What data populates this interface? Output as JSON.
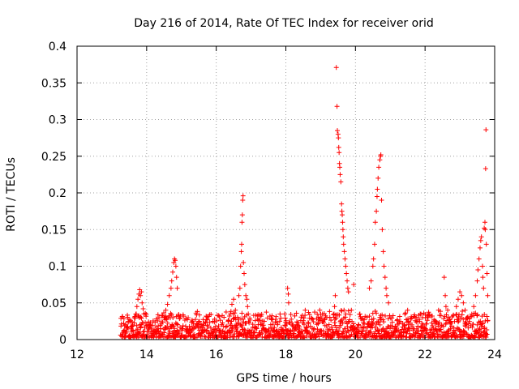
{
  "chart_data": {
    "type": "scatter",
    "title": "Day 216 of 2014, Rate Of TEC Index for receiver orid",
    "xlabel": "GPS time / hours",
    "ylabel": "ROTI / TECUs",
    "xlim": [
      12,
      24
    ],
    "ylim": [
      0,
      0.4
    ],
    "xticks": [
      12,
      14,
      16,
      18,
      20,
      22,
      24
    ],
    "xtick_labels": [
      "12",
      "14",
      "16",
      "18",
      "20",
      "22",
      "24"
    ],
    "yticks": [
      0,
      0.05,
      0.1,
      0.15,
      0.2,
      0.25,
      0.3,
      0.35,
      0.4
    ],
    "ytick_labels": [
      "0",
      "0.05",
      "0.1",
      "0.15",
      "0.2",
      "0.25",
      "0.3",
      "0.35",
      "0.4"
    ],
    "grid": true,
    "marker": "+",
    "color": "#ff0000",
    "series": [
      {
        "name": "ROTI",
        "note": "Dense band of points between ~0.003 and ~0.04 TECU from 13.25 h to 23.8 h (baseline), plus the representative elevated points listed below.",
        "baseline": {
          "x_start": 13.25,
          "x_end": 23.8,
          "y_min": 0.003,
          "y_max": 0.04
        },
        "points": [
          [
            13.6,
            0.02
          ],
          [
            13.65,
            0.03
          ],
          [
            13.7,
            0.035
          ],
          [
            13.72,
            0.045
          ],
          [
            13.75,
            0.055
          ],
          [
            13.78,
            0.062
          ],
          [
            13.8,
            0.068
          ],
          [
            13.82,
            0.06
          ],
          [
            13.85,
            0.065
          ],
          [
            13.87,
            0.05
          ],
          [
            13.9,
            0.042
          ],
          [
            13.92,
            0.035
          ],
          [
            14.5,
            0.03
          ],
          [
            14.55,
            0.04
          ],
          [
            14.6,
            0.048
          ],
          [
            14.65,
            0.06
          ],
          [
            14.7,
            0.07
          ],
          [
            14.72,
            0.08
          ],
          [
            14.75,
            0.092
          ],
          [
            14.78,
            0.105
          ],
          [
            14.8,
            0.11
          ],
          [
            14.82,
            0.108
          ],
          [
            14.84,
            0.1
          ],
          [
            14.86,
            0.085
          ],
          [
            14.88,
            0.07
          ],
          [
            16.4,
            0.035
          ],
          [
            16.45,
            0.048
          ],
          [
            16.5,
            0.055
          ],
          [
            16.55,
            0.04
          ],
          [
            16.65,
            0.06
          ],
          [
            16.68,
            0.07
          ],
          [
            16.7,
            0.1
          ],
          [
            16.72,
            0.12
          ],
          [
            16.73,
            0.13
          ],
          [
            16.74,
            0.16
          ],
          [
            16.75,
            0.17
          ],
          [
            16.76,
            0.19
          ],
          [
            16.77,
            0.196
          ],
          [
            16.78,
            0.105
          ],
          [
            16.8,
            0.09
          ],
          [
            16.82,
            0.075
          ],
          [
            16.85,
            0.06
          ],
          [
            16.88,
            0.055
          ],
          [
            16.9,
            0.045
          ],
          [
            18.05,
            0.07
          ],
          [
            18.07,
            0.062
          ],
          [
            18.08,
            0.05
          ],
          [
            19.4,
            0.045
          ],
          [
            19.42,
            0.06
          ],
          [
            19.45,
            0.371
          ],
          [
            19.47,
            0.318
          ],
          [
            19.48,
            0.285
          ],
          [
            19.5,
            0.28
          ],
          [
            19.51,
            0.275
          ],
          [
            19.52,
            0.262
          ],
          [
            19.53,
            0.255
          ],
          [
            19.54,
            0.24
          ],
          [
            19.55,
            0.235
          ],
          [
            19.56,
            0.225
          ],
          [
            19.58,
            0.215
          ],
          [
            19.6,
            0.185
          ],
          [
            19.61,
            0.175
          ],
          [
            19.62,
            0.17
          ],
          [
            19.63,
            0.16
          ],
          [
            19.64,
            0.15
          ],
          [
            19.65,
            0.14
          ],
          [
            19.66,
            0.13
          ],
          [
            19.68,
            0.12
          ],
          [
            19.7,
            0.11
          ],
          [
            19.72,
            0.1
          ],
          [
            19.74,
            0.09
          ],
          [
            19.76,
            0.08
          ],
          [
            19.78,
            0.07
          ],
          [
            19.8,
            0.065
          ],
          [
            19.95,
            0.075
          ],
          [
            20.4,
            0.07
          ],
          [
            20.45,
            0.08
          ],
          [
            20.5,
            0.1
          ],
          [
            20.52,
            0.11
          ],
          [
            20.55,
            0.13
          ],
          [
            20.57,
            0.16
          ],
          [
            20.6,
            0.175
          ],
          [
            20.62,
            0.195
          ],
          [
            20.63,
            0.205
          ],
          [
            20.65,
            0.22
          ],
          [
            20.67,
            0.235
          ],
          [
            20.7,
            0.245
          ],
          [
            20.72,
            0.25
          ],
          [
            20.73,
            0.252
          ],
          [
            20.75,
            0.19
          ],
          [
            20.77,
            0.15
          ],
          [
            20.8,
            0.12
          ],
          [
            20.82,
            0.1
          ],
          [
            20.85,
            0.085
          ],
          [
            20.88,
            0.07
          ],
          [
            20.9,
            0.06
          ],
          [
            20.95,
            0.05
          ],
          [
            22.55,
            0.085
          ],
          [
            22.58,
            0.06
          ],
          [
            22.6,
            0.045
          ],
          [
            22.65,
            0.04
          ],
          [
            22.9,
            0.045
          ],
          [
            22.95,
            0.055
          ],
          [
            23.0,
            0.065
          ],
          [
            23.05,
            0.06
          ],
          [
            23.1,
            0.05
          ],
          [
            23.15,
            0.04
          ],
          [
            23.4,
            0.045
          ],
          [
            23.45,
            0.06
          ],
          [
            23.5,
            0.08
          ],
          [
            23.52,
            0.095
          ],
          [
            23.55,
            0.11
          ],
          [
            23.58,
            0.125
          ],
          [
            23.6,
            0.135
          ],
          [
            23.62,
            0.14
          ],
          [
            23.65,
            0.1
          ],
          [
            23.66,
            0.085
          ],
          [
            23.68,
            0.07
          ],
          [
            23.7,
            0.152
          ],
          [
            23.72,
            0.16
          ],
          [
            23.73,
            0.15
          ],
          [
            23.74,
            0.233
          ],
          [
            23.75,
            0.286
          ],
          [
            23.76,
            0.13
          ],
          [
            23.78,
            0.09
          ],
          [
            23.8,
            0.06
          ]
        ]
      }
    ]
  }
}
